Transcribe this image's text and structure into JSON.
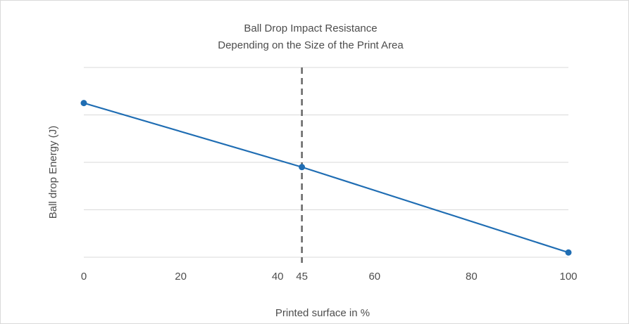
{
  "chart_data": {
    "type": "line",
    "title": [
      "Ball Drop Impact Resistance",
      "Depending on the Size of the Print Area"
    ],
    "xlabel": "Printed surface in %",
    "ylabel": "Ball drop Energy (J)",
    "x_ticks": [
      0,
      20,
      40,
      45,
      60,
      80,
      100
    ],
    "xlim": [
      0,
      100
    ],
    "ylim": [
      0,
      4
    ],
    "y_gridlines": [
      0,
      1,
      2,
      3,
      4
    ],
    "y_tick_labels_shown": false,
    "grid": "horizontal",
    "series": [
      {
        "color": "#1f6db3",
        "marker": "circle",
        "points": [
          {
            "x": 0,
            "y": 3.25
          },
          {
            "x": 45,
            "y": 1.9
          },
          {
            "x": 100,
            "y": 0.1
          }
        ]
      }
    ],
    "reference_line": {
      "axis": "x",
      "value": 45,
      "style": "dashed",
      "color": "#666666"
    },
    "colors": {
      "gridline": "#d9d9d9",
      "text": "#4d4d4d"
    }
  }
}
